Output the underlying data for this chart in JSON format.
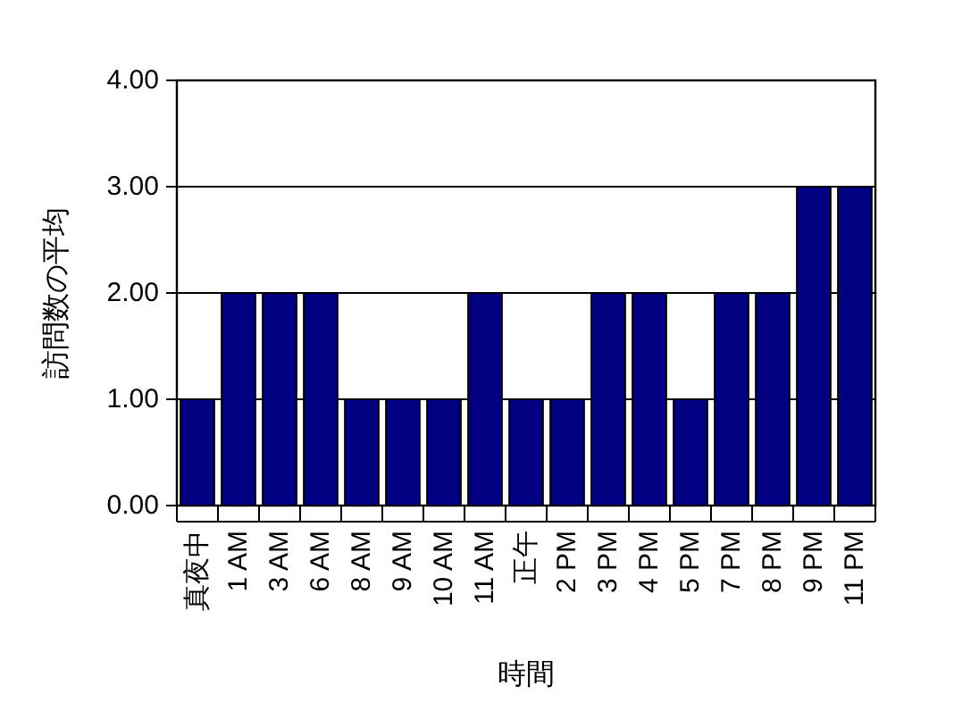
{
  "chart_data": {
    "type": "bar",
    "xlabel": "時間",
    "ylabel": "訪問数の平均",
    "categories": [
      "真夜中",
      "1 AM",
      "3 AM",
      "6 AM",
      "8 AM",
      "9 AM",
      "10 AM",
      "11 AM",
      "正午",
      "2 PM",
      "3 PM",
      "4 PM",
      "5 PM",
      "7 PM",
      "8 PM",
      "9 PM",
      "11 PM"
    ],
    "values": [
      1,
      2,
      2,
      2,
      1,
      1,
      1,
      2,
      1,
      1,
      2,
      2,
      1,
      2,
      2,
      3,
      3
    ],
    "color": "#000080",
    "ylim": [
      0,
      4
    ],
    "yticks": [
      {
        "value": 0,
        "label": "0.00"
      },
      {
        "value": 1,
        "label": "1.00"
      },
      {
        "value": 2,
        "label": "2.00"
      },
      {
        "value": 3,
        "label": "3.00"
      },
      {
        "value": 4,
        "label": "4.00"
      }
    ],
    "grid": "y"
  }
}
